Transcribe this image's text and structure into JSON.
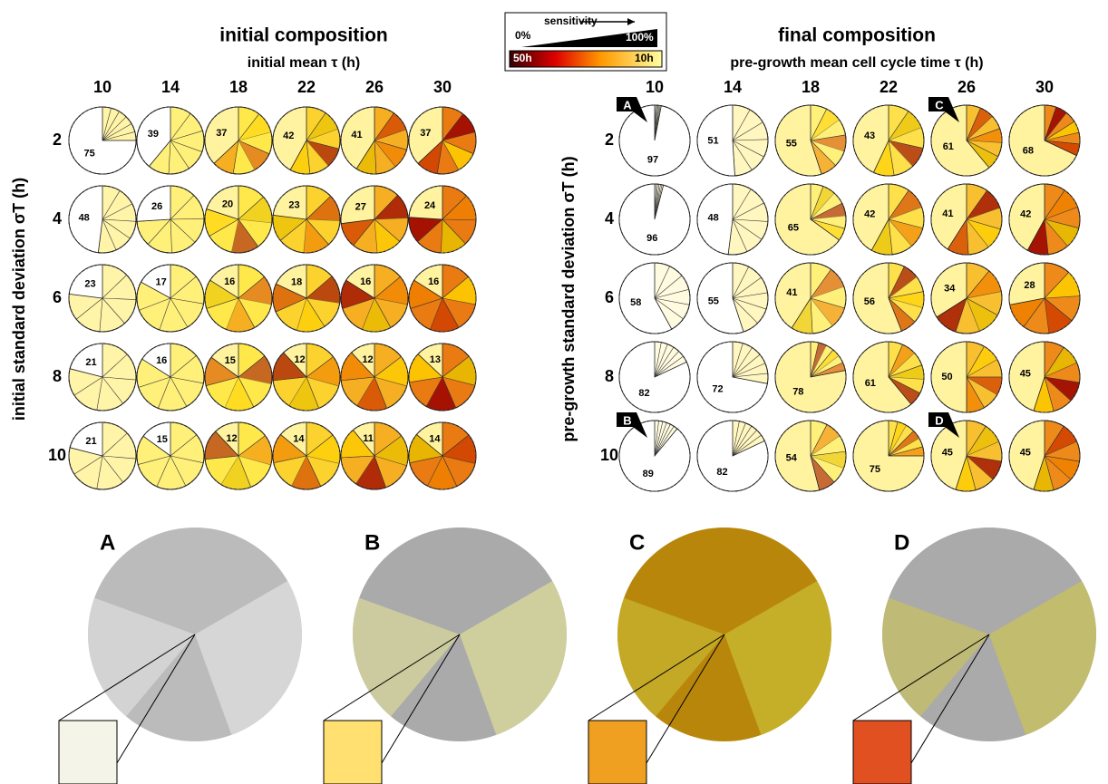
{
  "legend": {
    "label": "sensitivity",
    "low": "0%",
    "high": "100%",
    "scale_low": "50h",
    "scale_high": "10h"
  },
  "panels": [
    {
      "title": "initial composition",
      "x_label": "initial mean τ (h)",
      "y_label": "initial standard deviation σT (h)",
      "columns": [
        10,
        14,
        18,
        22,
        26,
        30
      ],
      "rows": [
        2,
        4,
        6,
        8,
        10
      ],
      "colors": [
        "#fff4a8",
        "#fff07a",
        "#ffe94a",
        "#fbd22e",
        "#f6ae22",
        "#ea7a12"
      ],
      "values": [
        [
          75,
          39,
          37,
          42,
          41,
          37
        ],
        [
          48,
          26,
          20,
          23,
          27,
          24
        ],
        [
          23,
          17,
          16,
          18,
          16,
          16
        ],
        [
          21,
          16,
          15,
          12,
          12,
          13
        ],
        [
          21,
          15,
          12,
          14,
          11,
          14
        ]
      ]
    },
    {
      "title": "final composition",
      "x_label": "pre-growth mean cell cycle time τ (h)",
      "y_label": "pre-growth standard deviation σT (h)",
      "columns": [
        10,
        14,
        18,
        22,
        26,
        30
      ],
      "rows": [
        2,
        4,
        6,
        8,
        10
      ],
      "colors": [
        "#fffbe0",
        "#fff6c0",
        "#fff07a",
        "#fde04a",
        "#f8c030",
        "#ee8a1a"
      ],
      "values": [
        [
          97,
          51,
          55,
          43,
          61,
          68
        ],
        [
          96,
          48,
          65,
          42,
          41,
          42
        ],
        [
          58,
          55,
          41,
          56,
          34,
          28
        ],
        [
          82,
          72,
          78,
          61,
          50,
          45
        ],
        [
          89,
          82,
          54,
          75,
          45,
          45
        ]
      ],
      "callouts": [
        "A",
        "B",
        "C",
        "D"
      ]
    }
  ],
  "snapshots": [
    "A",
    "B",
    "C",
    "D"
  ]
}
